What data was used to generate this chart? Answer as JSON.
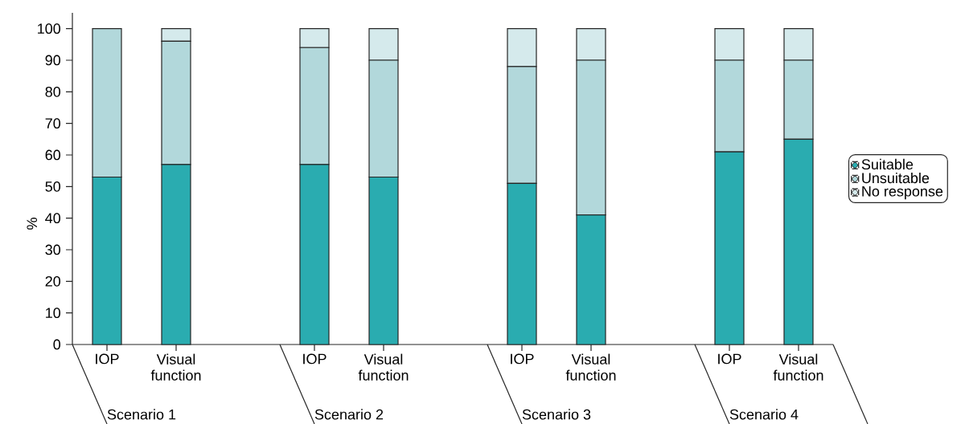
{
  "chart_data": {
    "type": "bar",
    "stacked": true,
    "ylabel": "%",
    "categories": [
      "IOP",
      "Visual function",
      "IOP",
      "Visual function",
      "IOP",
      "Visual function",
      "IOP",
      "Visual function"
    ],
    "series": [
      {
        "name": "Suitable",
        "color": "#2aacb0",
        "values": [
          53,
          57,
          57,
          53,
          51,
          41,
          61,
          65
        ]
      },
      {
        "name": "Unsuitable",
        "color": "#b2d8db",
        "values": [
          47,
          39,
          37,
          37,
          37,
          49,
          29,
          25
        ]
      },
      {
        "name": "No response",
        "color": "#d5eaec",
        "values": [
          0,
          4,
          6,
          10,
          12,
          10,
          10,
          10
        ]
      }
    ],
    "ylim": [
      0,
      105
    ],
    "yticks": [
      0,
      10,
      20,
      30,
      40,
      50,
      60,
      70,
      80,
      90,
      100
    ],
    "legend": "right",
    "annotations": [
      "Scenario 1",
      "Scenario 2",
      "Scenario 3",
      "Scenario 4"
    ]
  }
}
